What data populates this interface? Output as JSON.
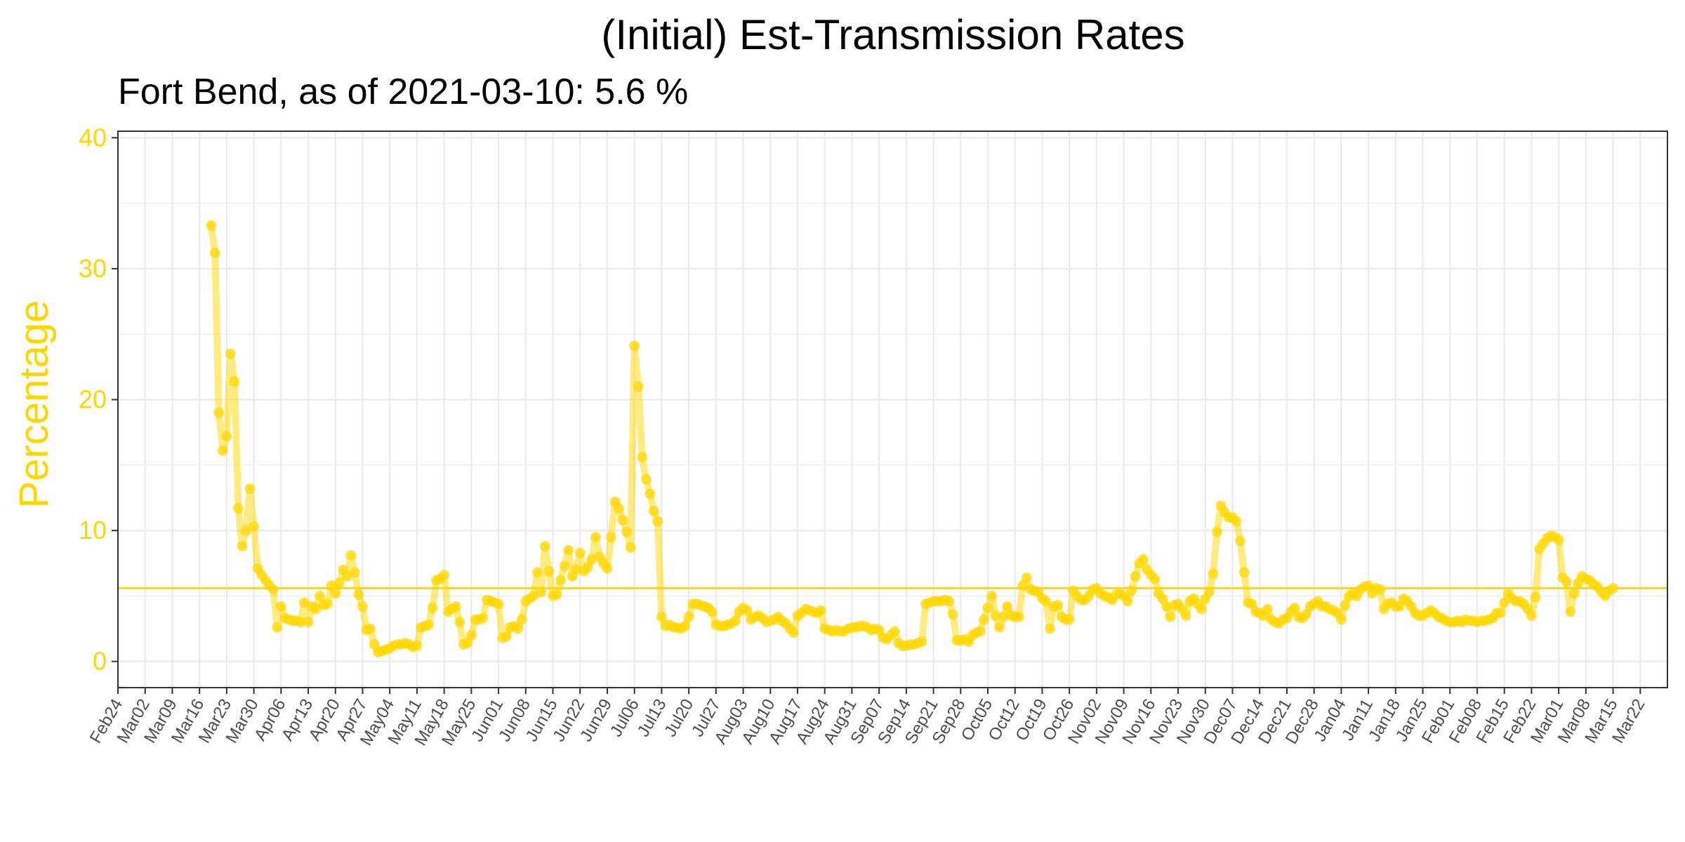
{
  "colors": {
    "accent": "#FFD700",
    "grid": "#EBEBEB",
    "axis_text": "#4D4D4D",
    "panel_border": "#333333"
  },
  "chart_data": {
    "type": "line",
    "title": "(Initial) Est-Transmission Rates",
    "subtitle": "Fort Bend, as of 2021-03-10:  5.6 %",
    "xlabel": "",
    "ylabel": "Percentage",
    "ylim": [
      -2,
      40.5
    ],
    "yticks": [
      0,
      10,
      20,
      30,
      40
    ],
    "xlim": [
      "2020-02-24",
      "2021-03-29"
    ],
    "xticks": [
      "Feb24",
      "Mar02",
      "Mar09",
      "Mar16",
      "Mar23",
      "Mar30",
      "Apr06",
      "Apr13",
      "Apr20",
      "Apr27",
      "May04",
      "May11",
      "May18",
      "May25",
      "Jun01",
      "Jun08",
      "Jun15",
      "Jun22",
      "Jun29",
      "Jul06",
      "Jul13",
      "Jul20",
      "Jul27",
      "Aug03",
      "Aug10",
      "Aug17",
      "Aug24",
      "Aug31",
      "Sep07",
      "Sep14",
      "Sep21",
      "Sep28",
      "Oct05",
      "Oct12",
      "Oct19",
      "Oct26",
      "Nov02",
      "Nov09",
      "Nov16",
      "Nov23",
      "Nov30",
      "Dec07",
      "Dec14",
      "Dec21",
      "Dec28",
      "Jan04",
      "Jan11",
      "Jan18",
      "Jan25",
      "Feb01",
      "Feb08",
      "Feb15",
      "Feb22",
      "Mar01",
      "Mar08",
      "Mar15",
      "Mar22"
    ],
    "reference_line": 5.6,
    "grid": true,
    "legend": "none",
    "series": [
      {
        "start_date": "2020-03-19",
        "values": [
          33.3,
          31.2,
          19.0,
          16.1,
          17.2,
          23.5,
          21.4,
          11.7,
          8.8,
          10.0,
          13.2,
          10.3,
          7.1,
          6.6,
          6.2,
          5.8,
          5.5,
          2.6,
          4.2,
          3.3,
          3.2,
          3.1,
          3.1,
          3.0,
          4.5,
          3.0,
          4.2,
          4.0,
          5.0,
          4.3,
          4.4,
          5.8,
          5.2,
          6.0,
          7.0,
          6.5,
          8.1,
          6.8,
          5.1,
          4.2,
          2.4,
          2.5,
          1.3,
          0.7,
          0.8,
          0.9,
          1.0,
          1.2,
          1.3,
          1.3,
          1.4,
          1.3,
          1.1,
          1.2,
          2.6,
          2.7,
          2.8,
          4.1,
          6.2,
          6.3,
          6.6,
          3.8,
          4.0,
          4.2,
          3.0,
          1.3,
          1.4,
          2.0,
          3.2,
          3.2,
          3.3,
          4.7,
          4.6,
          4.5,
          4.4,
          1.8,
          1.9,
          2.6,
          2.7,
          2.5,
          3.2,
          4.6,
          4.8,
          5.0,
          6.8,
          5.3,
          8.8,
          6.9,
          5.0,
          5.1,
          6.2,
          7.3,
          8.5,
          6.5,
          7.0,
          8.3,
          6.9,
          7.2,
          7.8,
          9.5,
          8.0,
          7.5,
          7.1,
          9.5,
          12.2,
          11.7,
          10.8,
          9.9,
          8.7,
          24.1,
          21.0,
          15.6,
          13.9,
          12.8,
          11.5,
          10.7,
          3.4,
          2.7,
          2.8,
          2.6,
          2.6,
          2.5,
          2.7,
          3.4,
          4.4,
          4.4,
          4.3,
          4.2,
          4.1,
          3.8,
          2.8,
          2.7,
          2.7,
          2.8,
          2.9,
          3.1,
          3.8,
          4.1,
          3.9,
          3.2,
          3.4,
          3.5,
          3.3,
          3.0,
          3.1,
          3.2,
          3.4,
          3.1,
          2.9,
          2.5,
          2.2,
          3.5,
          3.7,
          4.0,
          3.9,
          3.8,
          3.7,
          3.9,
          2.5,
          2.4,
          2.3,
          2.4,
          2.3,
          2.3,
          2.5,
          2.6,
          2.6,
          2.7,
          2.7,
          2.6,
          2.4,
          2.5,
          2.4,
          1.8,
          1.7,
          2.0,
          2.3,
          1.4,
          1.2,
          1.2,
          1.3,
          1.3,
          1.4,
          1.5,
          4.4,
          4.5,
          4.6,
          4.6,
          4.6,
          4.7,
          4.6,
          3.6,
          1.6,
          1.6,
          1.7,
          1.5,
          2.0,
          2.2,
          2.3,
          3.2,
          4.1,
          5.0,
          3.5,
          2.6,
          3.4,
          4.2,
          3.5,
          3.4,
          3.4,
          5.8,
          6.4,
          5.5,
          5.4,
          5.3,
          4.8,
          4.6,
          2.5,
          4.2,
          4.3,
          3.4,
          3.2,
          3.2,
          5.4,
          5.0,
          4.7,
          4.7,
          5.0,
          5.5,
          5.6,
          5.2,
          5.0,
          4.9,
          4.7,
          5.1,
          5.2,
          5.0,
          4.6,
          5.4,
          6.5,
          7.5,
          7.8,
          7.0,
          6.6,
          6.3,
          5.2,
          4.8,
          4.2,
          3.4,
          4.3,
          4.4,
          4.0,
          3.5,
          4.6,
          4.8,
          4.4,
          4.0,
          4.8,
          5.3,
          6.7,
          9.9,
          11.9,
          11.4,
          11.0,
          11.0,
          10.7,
          9.2,
          6.8,
          4.5,
          4.4,
          3.8,
          3.7,
          3.5,
          4.0,
          3.2,
          3.0,
          2.9,
          3.2,
          3.3,
          3.8,
          4.1,
          3.4,
          3.3,
          3.6,
          4.2,
          4.4,
          4.6,
          4.2,
          4.2,
          4.0,
          3.9,
          3.7,
          3.2,
          4.3,
          5.0,
          5.2,
          5.0,
          5.5,
          5.7,
          5.8,
          5.2,
          5.6,
          5.5,
          4.0,
          4.4,
          4.5,
          4.2,
          4.2,
          4.8,
          4.6,
          4.2,
          3.7,
          3.5,
          3.5,
          3.7,
          3.9,
          3.7,
          3.4,
          3.3,
          3.1,
          3.0,
          3.0,
          3.1,
          3.0,
          3.2,
          3.1,
          3.1,
          3.0,
          3.1,
          3.1,
          3.2,
          3.3,
          3.7,
          3.7,
          4.5,
          5.2,
          4.8,
          4.6,
          4.6,
          4.4,
          4.0,
          3.5,
          4.9,
          8.6,
          9.0,
          9.4,
          9.6,
          9.5,
          9.3,
          6.4,
          6.1,
          3.8,
          5.2,
          6.0,
          6.5,
          6.3,
          6.2,
          5.9,
          5.7,
          5.3,
          5.0,
          5.4,
          5.6
        ]
      }
    ]
  }
}
